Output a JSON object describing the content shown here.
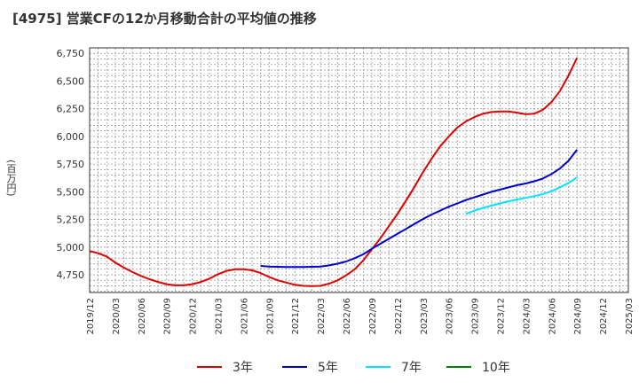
{
  "title": "[4975]  営業CFの12か月移動合計の平均値の推移",
  "chart_data": {
    "type": "line",
    "ylabel": "(百万円)",
    "ylim": [
      4590,
      6800
    ],
    "yticks": [
      4750,
      5000,
      5250,
      5500,
      5750,
      6000,
      6250,
      6500,
      6750
    ],
    "ytick_labels": [
      "4,750",
      "5,000",
      "5,250",
      "5,500",
      "5,750",
      "6,000",
      "6,250",
      "6,500",
      "6,750"
    ],
    "xlim": [
      "2019-12",
      "2025-03"
    ],
    "xtick_labels": [
      "2019/12",
      "2020/03",
      "2020/06",
      "2020/09",
      "2020/12",
      "2021/03",
      "2021/06",
      "2021/09",
      "2021/12",
      "2022/03",
      "2022/06",
      "2022/09",
      "2022/12",
      "2023/03",
      "2023/06",
      "2023/09",
      "2023/12",
      "2024/03",
      "2024/06",
      "2024/09",
      "2024/12",
      "2025/03"
    ],
    "grid": true,
    "legend_position": "bottom",
    "series": [
      {
        "name": "3年",
        "color": "#e00000",
        "x": [
          "2019-12",
          "2020-01",
          "2020-02",
          "2020-03",
          "2020-04",
          "2020-05",
          "2020-06",
          "2020-07",
          "2020-08",
          "2020-09",
          "2020-10",
          "2020-11",
          "2020-12",
          "2021-01",
          "2021-02",
          "2021-03",
          "2021-04",
          "2021-05",
          "2021-06",
          "2021-07",
          "2021-08",
          "2021-09",
          "2021-10",
          "2021-11",
          "2021-12",
          "2022-01",
          "2022-02",
          "2022-03",
          "2022-04",
          "2022-05",
          "2022-06",
          "2022-07",
          "2022-08",
          "2022-09",
          "2022-10",
          "2022-11",
          "2022-12",
          "2023-01",
          "2023-02",
          "2023-03",
          "2023-04",
          "2023-05",
          "2023-06",
          "2023-07",
          "2023-08",
          "2023-09",
          "2023-10",
          "2023-11",
          "2023-12",
          "2024-01",
          "2024-02",
          "2024-03",
          "2024-04",
          "2024-05",
          "2024-06",
          "2024-07",
          "2024-08",
          "2024-09"
        ],
        "values": [
          4965,
          4945,
          4915,
          4860,
          4815,
          4775,
          4740,
          4710,
          4685,
          4665,
          4655,
          4655,
          4665,
          4685,
          4715,
          4755,
          4785,
          4800,
          4800,
          4790,
          4765,
          4730,
          4700,
          4680,
          4660,
          4650,
          4648,
          4650,
          4670,
          4700,
          4745,
          4800,
          4880,
          4980,
          5080,
          5190,
          5300,
          5420,
          5545,
          5680,
          5800,
          5910,
          6000,
          6080,
          6135,
          6175,
          6205,
          6220,
          6225,
          6225,
          6215,
          6200,
          6205,
          6240,
          6310,
          6410,
          6550,
          6710
        ]
      },
      {
        "name": "5年",
        "color": "#0000cc",
        "x": [
          "2021-08",
          "2021-09",
          "2021-10",
          "2021-11",
          "2021-12",
          "2022-01",
          "2022-02",
          "2022-03",
          "2022-04",
          "2022-05",
          "2022-06",
          "2022-07",
          "2022-08",
          "2022-09",
          "2022-10",
          "2022-11",
          "2022-12",
          "2023-01",
          "2023-02",
          "2023-03",
          "2023-04",
          "2023-05",
          "2023-06",
          "2023-07",
          "2023-08",
          "2023-09",
          "2023-10",
          "2023-11",
          "2023-12",
          "2024-01",
          "2024-02",
          "2024-03",
          "2024-04",
          "2024-05",
          "2024-06",
          "2024-07",
          "2024-08",
          "2024-09"
        ],
        "values": [
          4830,
          4825,
          4822,
          4820,
          4820,
          4820,
          4822,
          4825,
          4835,
          4850,
          4870,
          4900,
          4935,
          4985,
          5030,
          5075,
          5120,
          5165,
          5210,
          5255,
          5295,
          5330,
          5365,
          5395,
          5425,
          5450,
          5475,
          5500,
          5520,
          5540,
          5560,
          5575,
          5595,
          5620,
          5660,
          5710,
          5780,
          5880
        ]
      },
      {
        "name": "7年",
        "color": "#00e5ff",
        "x": [
          "2023-08",
          "2023-09",
          "2023-10",
          "2023-11",
          "2023-12",
          "2024-01",
          "2024-02",
          "2024-03",
          "2024-04",
          "2024-05",
          "2024-06",
          "2024-07",
          "2024-08",
          "2024-09"
        ],
        "values": [
          5300,
          5330,
          5355,
          5375,
          5395,
          5415,
          5430,
          5445,
          5460,
          5480,
          5505,
          5540,
          5580,
          5630
        ]
      },
      {
        "name": "10年",
        "color": "#008000",
        "x": [],
        "values": []
      }
    ]
  }
}
